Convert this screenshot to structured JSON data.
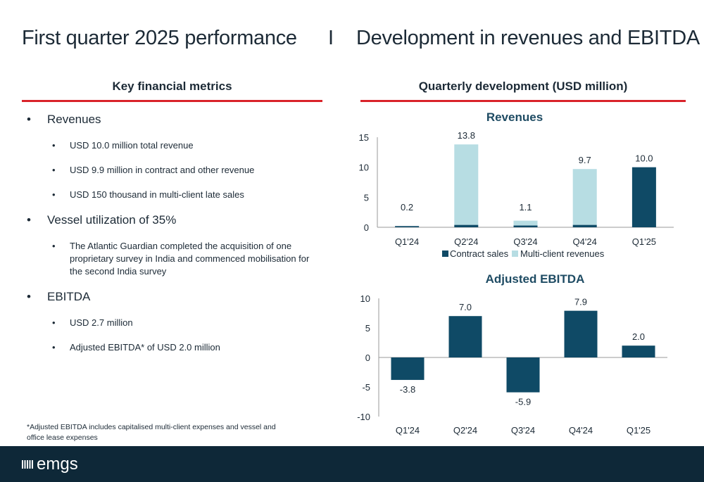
{
  "header": {
    "title_left": "First quarter 2025 performance",
    "separator": "I",
    "title_right": "Development in revenues and EBITDA"
  },
  "left_panel": {
    "heading": "Key financial metrics",
    "sections": [
      {
        "label": "Revenues",
        "items": [
          "USD 10.0 million total revenue",
          "USD 9.9 million in contract and other revenue",
          "USD 150 thousand in multi-client late sales"
        ]
      },
      {
        "label": "Vessel utilization of 35%",
        "items": [
          "The Atlantic Guardian completed the acquisition of one proprietary survey in India and commenced mobilisation for the second India survey"
        ]
      },
      {
        "label": "EBITDA",
        "items": [
          "USD 2.7 million",
          "Adjusted EBITDA* of USD 2.0 million"
        ]
      }
    ],
    "footnote": "*Adjusted EBITDA includes capitalised multi-client expenses and vessel and office lease expenses"
  },
  "right_panel": {
    "heading": "Quarterly development (USD million)"
  },
  "footer": {
    "logo_text": "emgs"
  },
  "colors": {
    "accent_red": "#d9232a",
    "dark_teal": "#0f4a66",
    "light_blue": "#b7dde3",
    "footer_bg": "#0e2838"
  },
  "chart_data": [
    {
      "type": "bar",
      "stacked": true,
      "title": "Revenues",
      "categories": [
        "Q1'24",
        "Q2'24",
        "Q3'24",
        "Q4'24",
        "Q1'25"
      ],
      "series": [
        {
          "name": "Contract sales",
          "values": [
            0.2,
            0.4,
            0.3,
            0.4,
            10.0
          ]
        },
        {
          "name": "Multi-client revenues",
          "values": [
            0.0,
            13.4,
            0.8,
            9.3,
            0.0
          ]
        }
      ],
      "totals": [
        0.2,
        13.8,
        1.1,
        9.7,
        10.0
      ],
      "total_labels": [
        "0.2",
        "13.8",
        "1.1",
        "9.7",
        "10.0"
      ],
      "ylim": [
        0,
        15
      ],
      "yticks": [
        0,
        5,
        10,
        15
      ],
      "legend": "bottom"
    },
    {
      "type": "bar",
      "title": "Adjusted EBITDA",
      "categories": [
        "Q1'24",
        "Q2'24",
        "Q3'24",
        "Q4'24",
        "Q1'25"
      ],
      "values": [
        -3.8,
        7.0,
        -5.9,
        7.9,
        2.0
      ],
      "value_labels": [
        "-3.8",
        "7.0",
        "-5.9",
        "7.9",
        "2.0"
      ],
      "ylim": [
        -10,
        10
      ],
      "yticks": [
        -10,
        -5,
        0,
        5,
        10
      ]
    }
  ]
}
